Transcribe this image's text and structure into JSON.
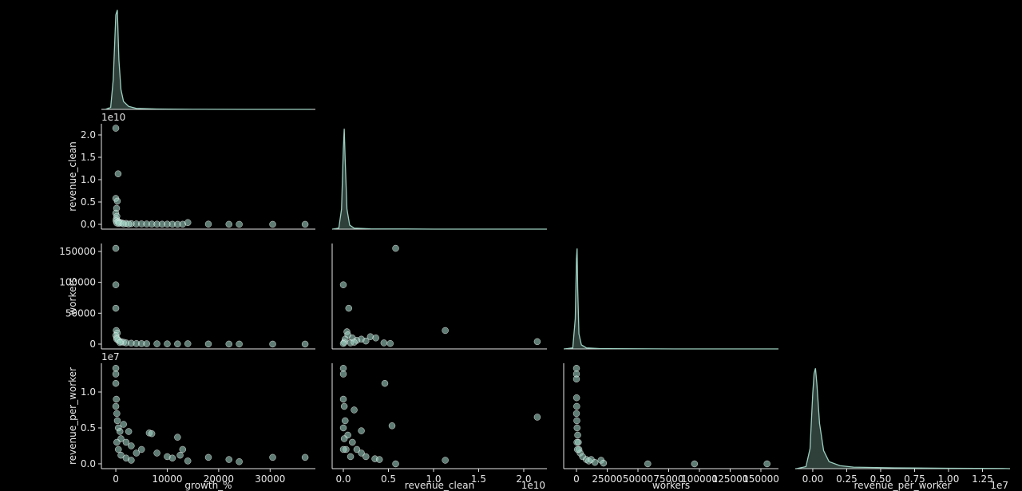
{
  "chart_data": [
    {
      "type": "kde",
      "color": "#9ccfc0",
      "x": [
        -2000,
        -1000,
        -500,
        0,
        300,
        600,
        1000,
        1500,
        2500,
        4000,
        8000,
        15000,
        25000,
        38000
      ],
      "values": [
        0,
        0.02,
        0.3,
        0.95,
        1.0,
        0.5,
        0.2,
        0.08,
        0.03,
        0.01,
        0.004,
        0.001,
        0,
        0
      ],
      "xlim": [
        -2800,
        38800
      ],
      "ylim": [
        0,
        1.02
      ]
    },
    {
      "type": "scatter",
      "color": "#9ccfc0",
      "y_label": "revenue_clean",
      "y_offset_label": "1e10",
      "x": [
        0,
        450,
        0,
        300,
        150,
        0,
        200,
        100,
        50,
        500,
        800,
        1200,
        2000,
        3000,
        4000,
        5000,
        6000,
        7000,
        8000,
        9000,
        10000,
        11000,
        12000,
        13000,
        14000,
        18000,
        22000,
        24000,
        30500,
        36800,
        200,
        600,
        1500,
        2500
      ],
      "values": [
        21500000000,
        11300000000,
        5800000000,
        5200000000,
        3600000000,
        2500000000,
        1800000000,
        1200000000,
        800000000,
        600000000,
        400000000,
        300000000,
        200000000,
        150000000,
        100000000,
        100000000,
        80000000,
        60000000,
        50000000,
        40000000,
        50000000,
        30000000,
        20000000,
        30000000,
        400000000,
        50000000,
        20000000,
        10000000,
        10000000,
        10000000,
        300000000,
        200000000,
        100000000,
        50000000
      ],
      "xlim": [
        -2800,
        38800
      ],
      "ylim": [
        -1070000000,
        22500000000
      ],
      "yticks": [
        {
          "value": 0,
          "label": "0.0"
        },
        {
          "value": 5000000000,
          "label": "0.5"
        },
        {
          "value": 10000000000,
          "label": "1.0"
        },
        {
          "value": 15000000000,
          "label": "1.5"
        },
        {
          "value": 20000000000,
          "label": "2.0"
        }
      ]
    },
    {
      "type": "kde",
      "color": "#9ccfc0",
      "x": [
        -1200000000,
        -500000000,
        -200000000,
        0,
        100000000,
        200000000,
        400000000,
        700000000,
        1200000000,
        3000000000,
        10000000000,
        22500000000
      ],
      "values": [
        0,
        0.01,
        0.2,
        0.8,
        1.0,
        0.7,
        0.2,
        0.04,
        0.01,
        0.003,
        0,
        0
      ],
      "xlim": [
        -1240000000,
        22570000000
      ],
      "ylim": [
        0,
        1.05
      ]
    },
    {
      "type": "scatter",
      "color": "#9ccfc0",
      "y_label": "workers",
      "x": [
        0,
        0,
        0,
        100,
        300,
        0,
        200,
        500,
        1000,
        1500,
        2000,
        3000,
        4000,
        5000,
        6000,
        8000,
        10000,
        12000,
        14000,
        18000,
        22000,
        24000,
        30500,
        36800,
        200,
        800
      ],
      "values": [
        155000,
        96000,
        58000,
        22000,
        18000,
        14000,
        10000,
        6000,
        4000,
        3000,
        2000,
        1500,
        1000,
        800,
        600,
        500,
        400,
        300,
        600,
        200,
        100,
        100,
        50,
        50,
        8000,
        2500
      ],
      "xlim": [
        -2800,
        38800
      ],
      "ylim": [
        -7750,
        162800
      ],
      "yticks": [
        0,
        50000,
        100000,
        150000
      ]
    },
    {
      "type": "scatter",
      "color": "#9ccfc0",
      "x": [
        5800000000,
        0,
        600000000,
        400000000,
        11300000000,
        21500000000,
        2000000000,
        3000000000,
        3600000000,
        4500000000,
        5200000000,
        1000000000,
        1500000000,
        2500000000,
        500000000,
        200000000,
        100000000,
        800000000,
        0,
        1200000000
      ],
      "values": [
        155000,
        96000,
        58000,
        20000,
        22000,
        4000,
        8000,
        12000,
        10000,
        2000,
        1000,
        10000,
        6000,
        5000,
        15000,
        8000,
        3000,
        2000,
        1000,
        3000
      ],
      "xlim": [
        -1240000000,
        22570000000
      ],
      "ylim": [
        -7750,
        162800
      ]
    },
    {
      "type": "kde",
      "color": "#9ccfc0",
      "x": [
        -10000,
        -3000,
        -1000,
        0,
        500,
        1000,
        2000,
        4000,
        8000,
        20000,
        80000,
        164000
      ],
      "values": [
        0,
        0.01,
        0.3,
        0.9,
        1.0,
        0.6,
        0.15,
        0.04,
        0.01,
        0.003,
        0,
        0
      ],
      "xlim": [
        -10390,
        164300
      ],
      "ylim": [
        0,
        1.05
      ]
    },
    {
      "type": "scatter",
      "color": "#9ccfc0",
      "x_label": "growth_%",
      "y_label": "revenue_per_worker",
      "y_offset_label": "1e7",
      "x": [
        0,
        0,
        0,
        100,
        200,
        0,
        300,
        500,
        800,
        1000,
        1500,
        2000,
        2500,
        3000,
        4000,
        5000,
        6500,
        7000,
        8000,
        10000,
        11000,
        12000,
        12500,
        13000,
        14000,
        18000,
        22000,
        24000,
        30500,
        36800,
        500,
        1000,
        2000,
        3000,
        200
      ],
      "values": [
        13300000,
        12500000,
        11200000,
        9000000,
        7000000,
        8000000,
        6000000,
        5000000,
        4500000,
        3500000,
        5500000,
        3000000,
        4500000,
        2500000,
        1500000,
        2000000,
        4300000,
        4200000,
        1500000,
        1000000,
        800000,
        3700000,
        1200000,
        2000000,
        400000,
        900000,
        600000,
        300000,
        900000,
        900000,
        2000000,
        1200000,
        800000,
        500000,
        3000000
      ],
      "xlim": [
        -2800,
        38800
      ],
      "ylim": [
        -670000,
        14000000
      ],
      "xticks": [
        0,
        10000,
        20000,
        30000
      ],
      "yticks": [
        {
          "value": 0,
          "label": "0.0"
        },
        {
          "value": 5000000,
          "label": "0.5"
        },
        {
          "value": 10000000,
          "label": "1.0"
        }
      ]
    },
    {
      "type": "scatter",
      "color": "#9ccfc0",
      "x_label": "revenue_clean",
      "x_offset_label": "1e10",
      "x": [
        0,
        0,
        0,
        100000000,
        200000000,
        0,
        500000000,
        1000000000,
        1200000000,
        1500000000,
        2000000000,
        2500000000,
        3500000000,
        4000000000,
        4600000000,
        5400000000,
        5800000000,
        11300000000,
        21500000000,
        300000000,
        800000000,
        2000000000,
        0,
        100000000
      ],
      "values": [
        13300000,
        12500000,
        9000000,
        8000000,
        6000000,
        5000000,
        4000000,
        3000000,
        7500000,
        2000000,
        4600000,
        1000000,
        700000,
        600000,
        11200000,
        5300000,
        0,
        500000,
        6500000,
        2000000,
        1000000,
        1500000,
        2000000,
        3500000
      ],
      "xlim": [
        -1240000000,
        22570000000
      ],
      "ylim": [
        -670000,
        14000000
      ],
      "xticks": [
        {
          "value": 0,
          "label": "0.0"
        },
        {
          "value": 5000000000,
          "label": "0.5"
        },
        {
          "value": 10000000000,
          "label": "1.0"
        },
        {
          "value": 15000000000,
          "label": "1.5"
        },
        {
          "value": 20000000000,
          "label": "2.0"
        }
      ]
    },
    {
      "type": "scatter",
      "color": "#9ccfc0",
      "x_label": "workers",
      "x": [
        0,
        0,
        0,
        100,
        200,
        0,
        300,
        500,
        1000,
        1500,
        2000,
        3000,
        5000,
        8000,
        10000,
        12000,
        15000,
        20000,
        58000,
        96000,
        155000,
        22000,
        400,
        800
      ],
      "values": [
        13300000,
        12500000,
        11800000,
        9200000,
        8000000,
        7000000,
        6000000,
        5000000,
        4000000,
        3000000,
        2000000,
        1500000,
        1000000,
        600000,
        400000,
        600000,
        200000,
        500000,
        0,
        0,
        0,
        100000,
        3000000,
        2000000
      ],
      "xlim": [
        -10390,
        164300
      ],
      "ylim": [
        -670000,
        14000000
      ],
      "xticks": [
        0,
        25000,
        50000,
        75000,
        100000,
        125000,
        150000
      ]
    },
    {
      "type": "kde",
      "color": "#9ccfc0",
      "x_label": "revenue_per_worker",
      "x_offset_label": "1e7",
      "x": [
        -1200000,
        -500000,
        -200000,
        0,
        100000,
        200000,
        300000,
        500000,
        800000,
        1200000,
        2000000,
        3000000,
        6000000,
        10000000,
        14000000,
        14500000
      ],
      "values": [
        0,
        0.02,
        0.2,
        0.75,
        0.95,
        1.0,
        0.85,
        0.45,
        0.18,
        0.07,
        0.03,
        0.015,
        0.008,
        0.004,
        0.002,
        0
      ],
      "xlim": [
        -1290000,
        14530000
      ],
      "ylim": [
        0,
        1.05
      ],
      "xticks": [
        {
          "value": 0,
          "label": "0.00"
        },
        {
          "value": 2500000,
          "label": "0.25"
        },
        {
          "value": 5000000,
          "label": "0.50"
        },
        {
          "value": 7500000,
          "label": "0.75"
        },
        {
          "value": 10000000,
          "label": "1.00"
        },
        {
          "value": 12500000,
          "label": "1.25"
        }
      ]
    }
  ]
}
